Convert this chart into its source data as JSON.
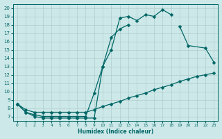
{
  "xlabel": "Humidex (Indice chaleur)",
  "bg_color": "#cde8e8",
  "line_color": "#006666",
  "grid_color": "#b0cccc",
  "xlim": [
    -0.5,
    23.5
  ],
  "ylim": [
    6.5,
    20.5
  ],
  "yticks": [
    7,
    8,
    9,
    10,
    11,
    12,
    13,
    14,
    15,
    16,
    17,
    18,
    19,
    20
  ],
  "xticks": [
    0,
    1,
    2,
    3,
    4,
    5,
    6,
    7,
    8,
    9,
    10,
    11,
    12,
    13,
    14,
    15,
    16,
    17,
    18,
    19,
    20,
    21,
    22,
    23
  ],
  "line1_x": [
    0,
    1,
    2,
    3,
    4,
    5,
    6,
    7,
    8,
    9,
    10,
    11,
    12,
    13,
    14,
    15,
    16,
    17,
    18
  ],
  "line1_y": [
    8.5,
    7.5,
    7.0,
    6.8,
    6.8,
    6.8,
    6.8,
    6.8,
    6.8,
    6.8,
    13.0,
    15.0,
    18.8,
    19.0,
    18.5,
    19.2,
    19.0,
    19.8,
    19.2
  ],
  "line2_x": [
    0,
    1,
    2,
    3,
    4,
    5,
    6,
    7,
    8,
    9,
    10,
    11,
    12,
    13,
    19,
    20,
    22,
    23
  ],
  "line2_y": [
    8.5,
    7.5,
    7.2,
    7.0,
    7.0,
    7.0,
    7.0,
    7.0,
    7.0,
    9.8,
    13.0,
    16.5,
    17.5,
    18.0,
    17.8,
    15.5,
    15.2,
    13.5
  ],
  "line3_x": [
    0,
    1,
    2,
    3,
    4,
    5,
    6,
    7,
    8,
    9,
    10,
    11,
    12,
    13,
    14,
    15,
    16,
    17,
    18,
    19,
    20,
    21,
    22,
    23
  ],
  "line3_y": [
    8.5,
    7.8,
    7.5,
    7.5,
    7.5,
    7.5,
    7.5,
    7.5,
    7.5,
    7.8,
    8.2,
    8.5,
    8.8,
    9.2,
    9.5,
    9.8,
    10.2,
    10.5,
    10.8,
    11.2,
    11.5,
    11.8,
    12.0,
    12.2
  ]
}
